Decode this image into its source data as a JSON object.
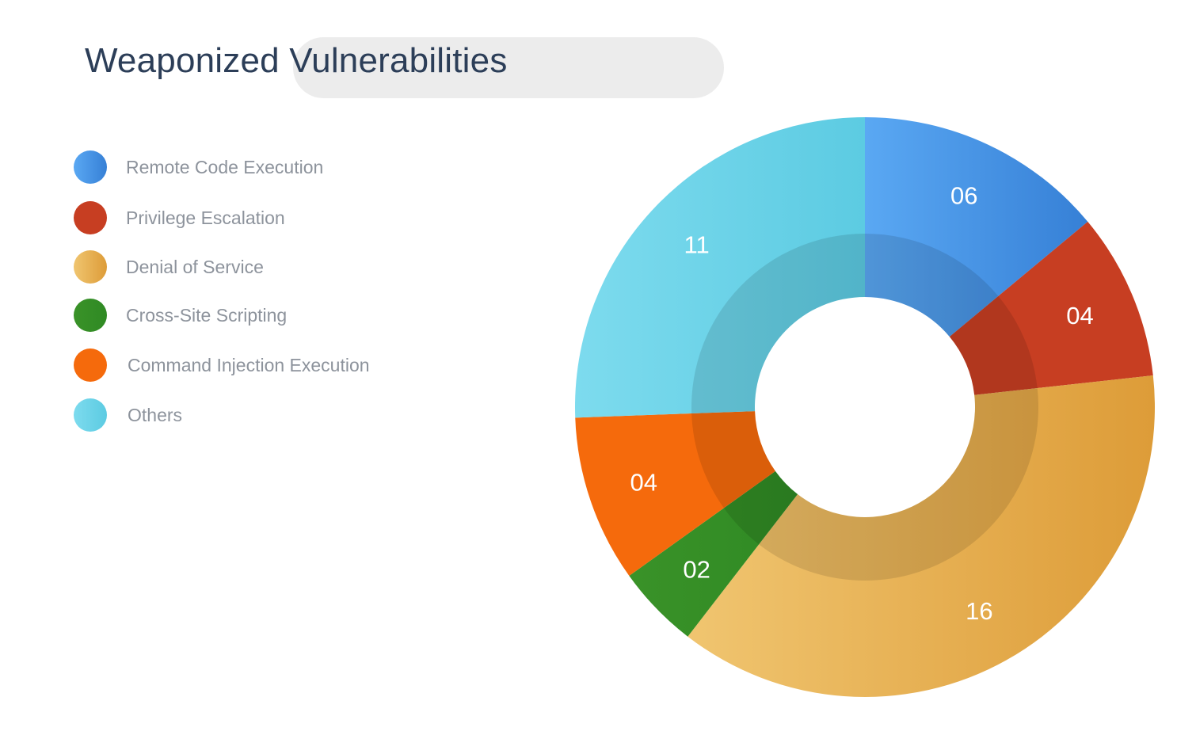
{
  "title": "Weaponized Vulnerabilities",
  "legend": [
    {
      "label": "Remote Code Execution",
      "color": "#3b87de"
    },
    {
      "label": "Privilege Escalation",
      "color": "#c73e22"
    },
    {
      "label": "Denial of Service",
      "color": "#e5ac4f"
    },
    {
      "label": "Cross-Site Scripting",
      "color": "#2f8a24"
    },
    {
      "label": "Command Injection Execution",
      "color": "#f56a0c"
    },
    {
      "label": "Others",
      "color": "#69d2e6"
    }
  ],
  "chart_data": {
    "type": "pie",
    "title": "Weaponized Vulnerabilities",
    "style": "donut",
    "categories": [
      "Remote Code Execution",
      "Privilege Escalation",
      "Denial of Service",
      "Cross-Site Scripting",
      "Command Injection Execution",
      "Others"
    ],
    "values": [
      6,
      4,
      16,
      2,
      4,
      11
    ],
    "labels": [
      "06",
      "04",
      "16",
      "02",
      "04",
      "11"
    ],
    "colors": [
      {
        "start": "#5aa8f3",
        "end": "#3680d6"
      },
      {
        "start": "#c73e22",
        "end": "#c73e22"
      },
      {
        "start": "#f0c570",
        "end": "#dd9c38"
      },
      {
        "start": "#3a9228",
        "end": "#2f8a24"
      },
      {
        "start": "#f56a0c",
        "end": "#f56a0c"
      },
      {
        "start": "#7ddbee",
        "end": "#5ccbe2"
      }
    ],
    "legend_position": "left"
  }
}
